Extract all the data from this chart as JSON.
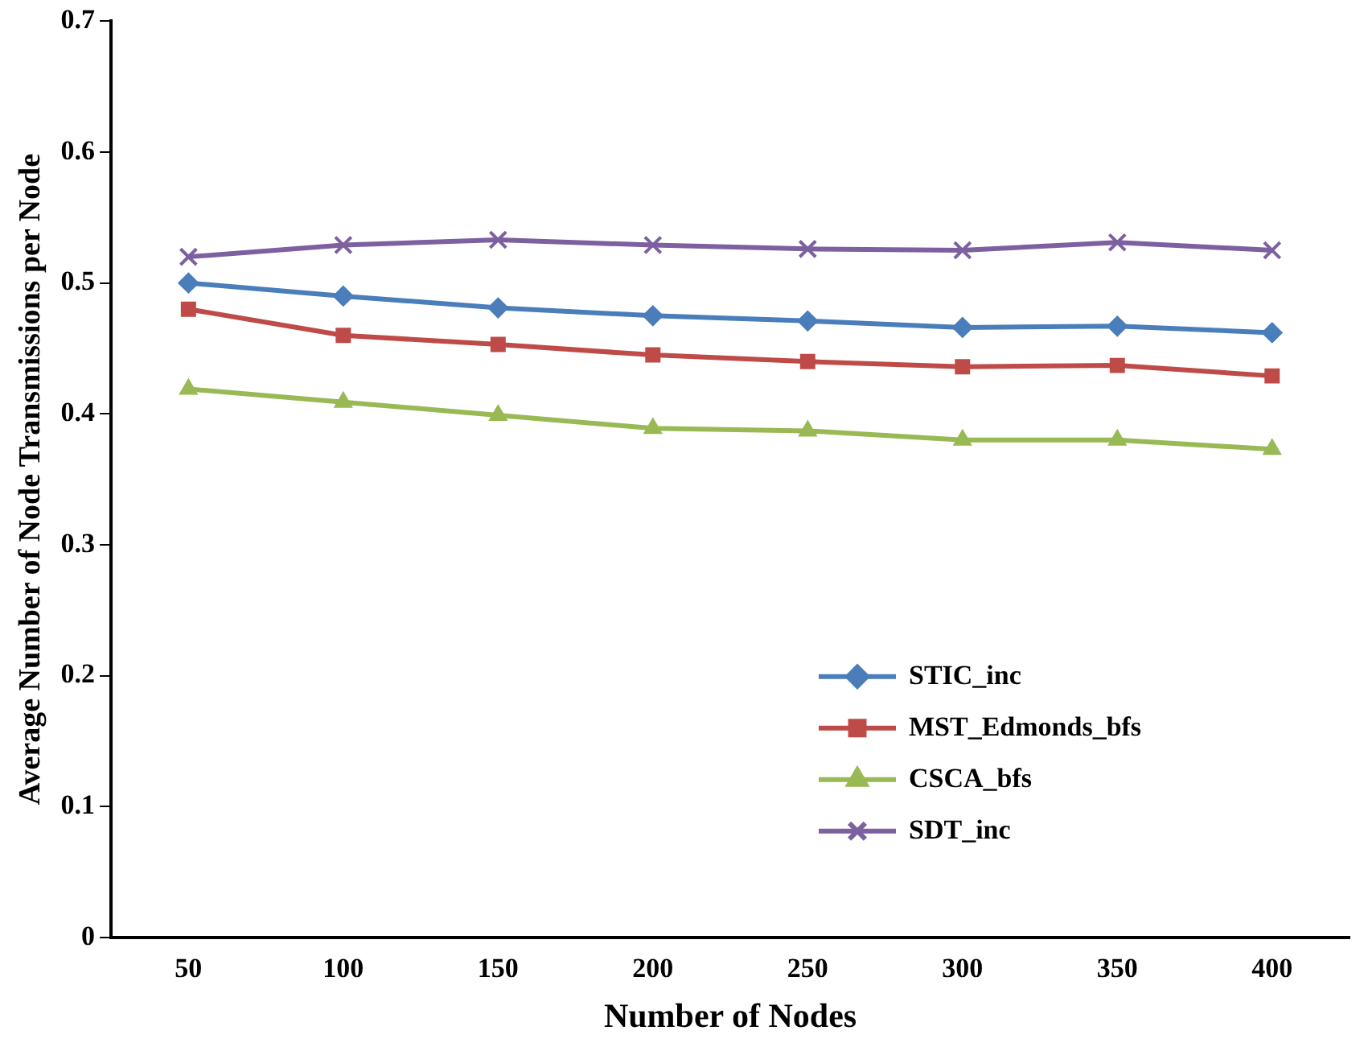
{
  "chart_data": {
    "type": "line",
    "xlabel": "Number of Nodes",
    "ylabel": "Average Number of Node Transmissions per Node",
    "categories": [
      "50",
      "100",
      "150",
      "200",
      "250",
      "300",
      "350",
      "400"
    ],
    "ylim": [
      0,
      0.7
    ],
    "yticks": [
      0,
      0.1,
      0.2,
      0.3,
      0.4,
      0.5,
      0.6,
      0.7
    ],
    "grid": false,
    "legend": "bottom right",
    "series": [
      {
        "name": "STIC_inc",
        "color": "#4a7ebb",
        "marker": "diamond",
        "values": [
          0.5,
          0.49,
          0.481,
          0.475,
          0.471,
          0.466,
          0.467,
          0.462
        ]
      },
      {
        "name": "MST_Edmonds_bfs",
        "color": "#be4b48",
        "marker": "square",
        "values": [
          0.48,
          0.46,
          0.453,
          0.445,
          0.44,
          0.436,
          0.437,
          0.429
        ]
      },
      {
        "name": "CSCA_bfs",
        "color": "#98b954",
        "marker": "triangle",
        "values": [
          0.419,
          0.409,
          0.399,
          0.389,
          0.387,
          0.38,
          0.38,
          0.373
        ]
      },
      {
        "name": "SDT_inc",
        "color": "#7d60a0",
        "marker": "cross",
        "values": [
          0.52,
          0.529,
          0.533,
          0.529,
          0.526,
          0.525,
          0.531,
          0.525
        ]
      }
    ]
  }
}
